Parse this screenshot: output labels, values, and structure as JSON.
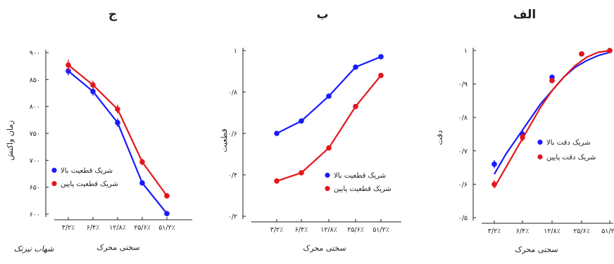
{
  "signature_text": "شهاب تیزتک",
  "colors": {
    "blue": "#1a1aff",
    "red": "#e3161c",
    "axis": "#222222"
  },
  "x_categories": [
    "۳/۲٪",
    "۶/۴٪",
    "۱۲/۸٪",
    "۲۵/۶٪",
    "۵۱/۲٪"
  ],
  "chart_data": [
    {
      "type": "line",
      "title": "ج",
      "xlabel": "سختی محرک",
      "ylabel": "زمان واکنش",
      "categories": [
        "۳/۲٪",
        "۶/۴٪",
        "۱۲/۸٪",
        "۲۵/۶٪",
        "۵۱/۲٪"
      ],
      "ylim": [
        600,
        900
      ],
      "yticks": [
        600,
        650,
        700,
        750,
        800,
        850,
        900
      ],
      "ytick_labels": [
        "۶۰۰",
        "۶۵۰",
        "۷۰۰",
        "۷۵۰",
        "۸۰۰",
        "۸۵۰",
        "۹۰۰"
      ],
      "legend_position": "bottom-left",
      "series": [
        {
          "name": "شریک قطعیت بالا",
          "color": "#1a1aff",
          "values": [
            866,
            828,
            770,
            658,
            601
          ],
          "errors": [
            8,
            8,
            8,
            5,
            4
          ]
        },
        {
          "name": "شریک قطعیت پایین",
          "color": "#e3161c",
          "values": [
            877,
            840,
            795,
            697,
            634
          ],
          "errors": [
            10,
            8,
            8,
            6,
            5
          ]
        }
      ]
    },
    {
      "type": "line",
      "title": "ب",
      "xlabel": "سختی محرک",
      "ylabel": "قطعیت",
      "categories": [
        "۳/۲٪",
        "۶/۴٪",
        "۱۲/۸٪",
        "۲۵/۶٪",
        "۵۱/۲٪"
      ],
      "ylim": [
        0.2,
        1.0
      ],
      "yticks": [
        0.2,
        0.4,
        0.6,
        0.8,
        1.0
      ],
      "ytick_labels": [
        "۰/۲",
        "۰/۴",
        "۰/۶",
        "۰/۸",
        "۱"
      ],
      "legend_position": "bottom-right",
      "series": [
        {
          "name": "شریک قطعیت بالا",
          "color": "#1a1aff",
          "values": [
            0.6,
            0.66,
            0.78,
            0.92,
            0.97
          ],
          "errors": [
            0.005,
            0.005,
            0.005,
            0.005,
            0.005
          ]
        },
        {
          "name": "شریک قطعیت پایین",
          "color": "#e3161c",
          "values": [
            0.37,
            0.41,
            0.53,
            0.73,
            0.88
          ],
          "errors": [
            0.005,
            0.005,
            0.005,
            0.005,
            0.01
          ]
        }
      ]
    },
    {
      "type": "scatter",
      "title": "الف",
      "xlabel": "سختی محرک",
      "ylabel": "دقت",
      "categories": [
        "۳/۲٪",
        "۶/۴٪",
        "۱۲/۸٪",
        "۲۵/۶٪",
        "۵۱/۲٪"
      ],
      "ylim": [
        0.5,
        1.0
      ],
      "yticks": [
        0.5,
        0.6,
        0.7,
        0.8,
        0.9,
        1.0
      ],
      "ytick_labels": [
        "۰/۵",
        "۰/۶",
        "۰/۷",
        "۰/۸",
        "۰/۹",
        "۱"
      ],
      "legend_position": "right",
      "series": [
        {
          "name": "شریک دقت بالا",
          "color": "#1a1aff",
          "values": [
            0.66,
            0.75,
            0.92,
            0.99,
            1.0
          ],
          "errors": [
            0.012,
            0.012,
            0.008,
            0.006,
            0.004
          ],
          "fit": [
            0.63,
            0.69,
            0.74,
            0.79,
            0.84,
            0.88,
            0.92,
            0.95,
            0.97,
            0.985,
            0.995
          ]
        },
        {
          "name": "شریک دقت پایین",
          "color": "#e3161c",
          "values": [
            0.6,
            0.74,
            0.91,
            0.99,
            1.0
          ],
          "errors": [
            0.012,
            0.012,
            0.008,
            0.006,
            0.004
          ],
          "fit": [
            0.59,
            0.65,
            0.71,
            0.77,
            0.83,
            0.88,
            0.92,
            0.955,
            0.98,
            0.995,
            1.0
          ]
        }
      ]
    }
  ]
}
